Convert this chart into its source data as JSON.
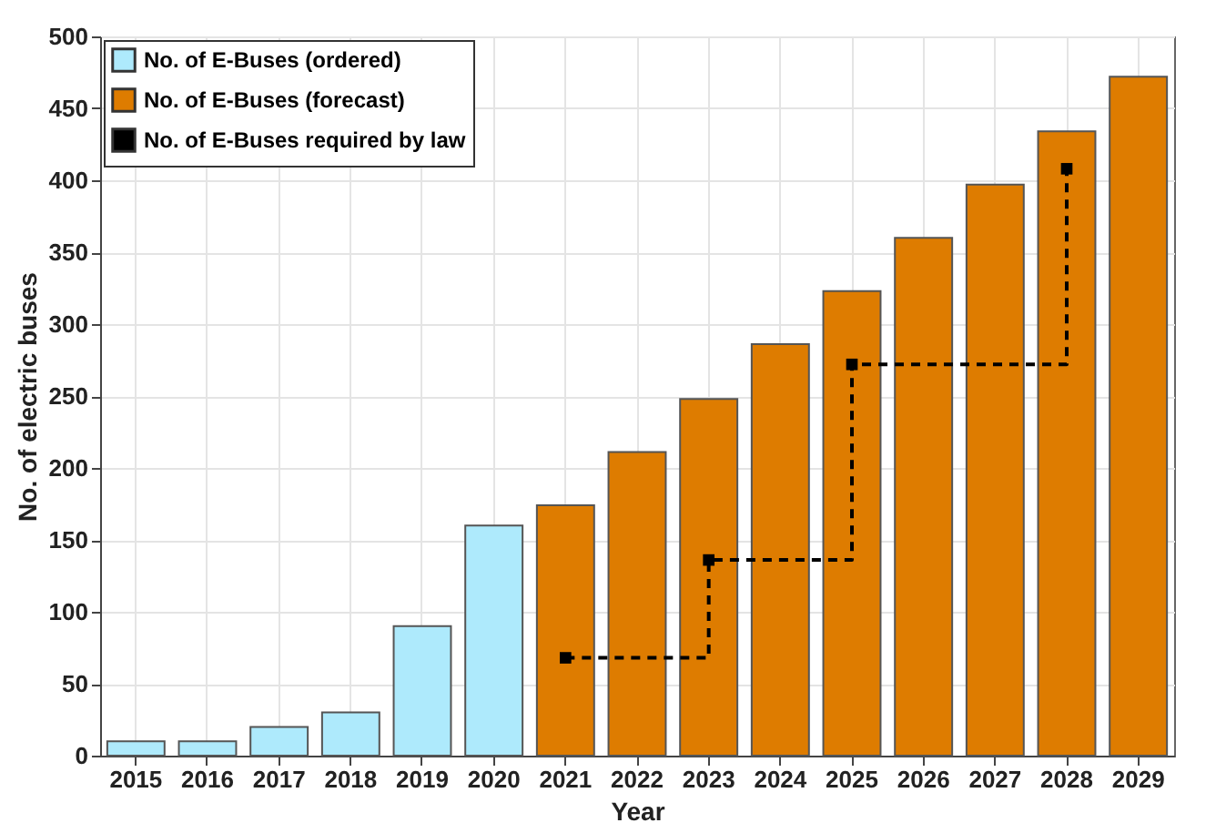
{
  "chart_data": {
    "type": "bar",
    "xlabel": "Year",
    "ylabel": "No. of electric buses",
    "categories": [
      "2015",
      "2016",
      "2017",
      "2018",
      "2019",
      "2020",
      "2021",
      "2022",
      "2023",
      "2024",
      "2025",
      "2026",
      "2027",
      "2028",
      "2029"
    ],
    "series": [
      {
        "name": "No. of E-Buses (ordered)",
        "color": "#aeeafc",
        "values": [
          10,
          10,
          20,
          30,
          90,
          160,
          null,
          null,
          null,
          null,
          null,
          null,
          null,
          null,
          null
        ]
      },
      {
        "name": "No. of E-Buses (forecast)",
        "color": "#de7c00",
        "values": [
          null,
          null,
          null,
          null,
          null,
          null,
          174,
          211,
          248,
          286,
          323,
          360,
          397,
          434,
          472
        ]
      },
      {
        "name": "No. of E-Buses required by law",
        "type": "step",
        "color": "#000000",
        "values": [
          null,
          null,
          null,
          null,
          null,
          null,
          68,
          null,
          136,
          null,
          272,
          null,
          null,
          408,
          null
        ]
      }
    ],
    "ylim": [
      0,
      500
    ],
    "yticks": [
      0,
      50,
      100,
      150,
      200,
      250,
      300,
      350,
      400,
      450,
      500
    ],
    "grid": true,
    "legend": "top left",
    "marker": "square",
    "line_style": "dashed"
  }
}
